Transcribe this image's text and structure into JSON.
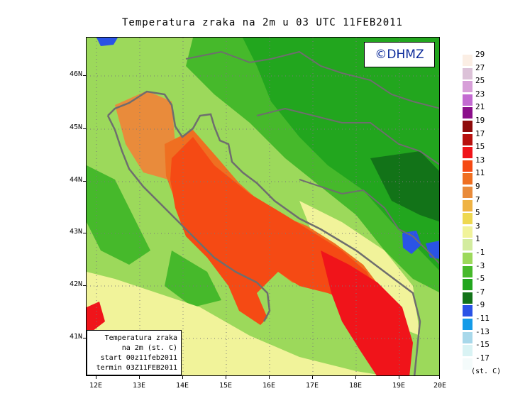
{
  "title": "Temperatura zraka na 2m u 03 UTC 11FEB2011",
  "logo": "©DHMZ",
  "infobox": {
    "line1": "Temperatura zraka",
    "line2": "na 2m (st. C)",
    "line3": "start 00z11feb2011",
    "line4": "termin 03Z11FEB2011"
  },
  "axes": {
    "lat_labels": [
      "46N",
      "45N",
      "44N",
      "43N",
      "42N",
      "41N"
    ],
    "lon_labels": [
      "12E",
      "13E",
      "14E",
      "15E",
      "16E",
      "17E",
      "18E",
      "19E",
      "20E"
    ]
  },
  "legend": {
    "unit": "(st. C)",
    "levels": [
      {
        "label": "29",
        "color": "#fbeee4"
      },
      {
        "label": "27",
        "color": "#dcc2d8"
      },
      {
        "label": "25",
        "color": "#d79fd8"
      },
      {
        "label": "23",
        "color": "#c36bd1"
      },
      {
        "label": "21",
        "color": "#8b0f8a"
      },
      {
        "label": "19",
        "color": "#8e0b0b"
      },
      {
        "label": "17",
        "color": "#b8120f"
      },
      {
        "label": "15",
        "color": "#f0141a"
      },
      {
        "label": "13",
        "color": "#f54a14"
      },
      {
        "label": "11",
        "color": "#ef6f21"
      },
      {
        "label": "9",
        "color": "#e98b3b"
      },
      {
        "label": "7",
        "color": "#efb344"
      },
      {
        "label": "5",
        "color": "#eed850"
      },
      {
        "label": "3",
        "color": "#f1f39a"
      },
      {
        "label": "1",
        "color": "#d3ec9f"
      },
      {
        "label": "-1",
        "color": "#9cd95b"
      },
      {
        "label": "-3",
        "color": "#46b92b"
      },
      {
        "label": "-5",
        "color": "#22a61e"
      },
      {
        "label": "-7",
        "color": "#127318"
      },
      {
        "label": "-9",
        "color": "#2a53e6"
      },
      {
        "label": "-11",
        "color": "#149be8"
      },
      {
        "label": "-13",
        "color": "#a8d8ea"
      },
      {
        "label": "-15",
        "color": "#d9f3f4"
      },
      {
        "label": "-17",
        "color": "#f4fbfb"
      }
    ]
  },
  "field_colors": {
    "sea_warm": "#f54a14",
    "sea_mid": "#ef6f21",
    "sea_north": "#e98b3b",
    "south_hot": "#f0141a",
    "coast_yellow": "#f1f39a",
    "land_light": "#9cd95b",
    "land_mid": "#46b92b",
    "land_dark": "#22a61e",
    "land_darkest": "#127318",
    "cold_blue": "#2a53e6",
    "border": "#6e6e6e"
  }
}
